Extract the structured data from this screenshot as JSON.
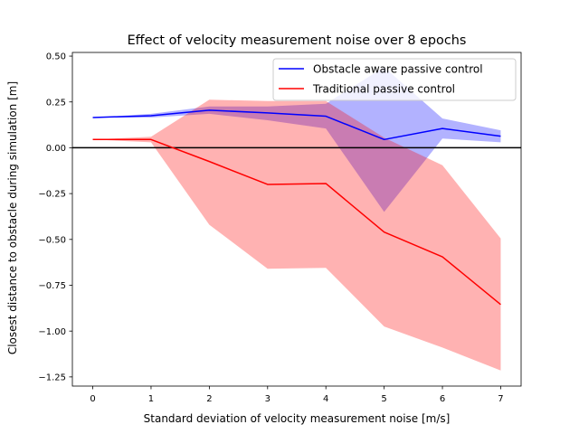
{
  "chart_data": {
    "type": "line",
    "title": "Effect of velocity measurement noise over 8 epochs",
    "xlabel": "Standard deviation of velocity measurement noise [m/s]",
    "ylabel": "Closest distance to obstacle during simulation [m]",
    "xlim": [
      -0.35,
      7.35
    ],
    "ylim": [
      -1.3,
      0.52
    ],
    "xticks": [
      0,
      1,
      2,
      3,
      4,
      5,
      6,
      7
    ],
    "xtick_labels": [
      "0",
      "1",
      "2",
      "3",
      "4",
      "5",
      "6",
      "7"
    ],
    "yticks": [
      0.5,
      0.25,
      0.0,
      -0.25,
      -0.5,
      -0.75,
      -1.0,
      -1.25
    ],
    "ytick_labels": [
      "0.50",
      "0.25",
      "0.00",
      "−0.25",
      "−0.50",
      "−0.75",
      "−1.00",
      "−1.25"
    ],
    "grid": false,
    "legend_position": "top-right",
    "reference_line": {
      "y": 0.0,
      "color": "#000000"
    },
    "x": [
      0,
      1,
      2,
      3,
      4,
      5,
      6,
      7
    ],
    "series": [
      {
        "name": "Obstacle aware passive control",
        "color": "#0000ff",
        "values": [
          0.165,
          0.175,
          0.205,
          0.19,
          0.172,
          0.045,
          0.105,
          0.063
        ],
        "lower": [
          0.165,
          0.165,
          0.185,
          0.15,
          0.105,
          -0.35,
          0.05,
          0.03
        ],
        "upper": [
          0.165,
          0.185,
          0.225,
          0.225,
          0.24,
          0.44,
          0.16,
          0.095
        ]
      },
      {
        "name": "Traditional passive control",
        "color": "#ff0000",
        "values": [
          0.045,
          0.045,
          -0.075,
          -0.2,
          -0.195,
          -0.46,
          -0.595,
          -0.855
        ],
        "lower": [
          0.045,
          0.03,
          -0.42,
          -0.66,
          -0.655,
          -0.975,
          -1.09,
          -1.215
        ],
        "upper": [
          0.045,
          0.06,
          0.262,
          0.255,
          0.255,
          0.055,
          -0.095,
          -0.495
        ]
      }
    ]
  }
}
